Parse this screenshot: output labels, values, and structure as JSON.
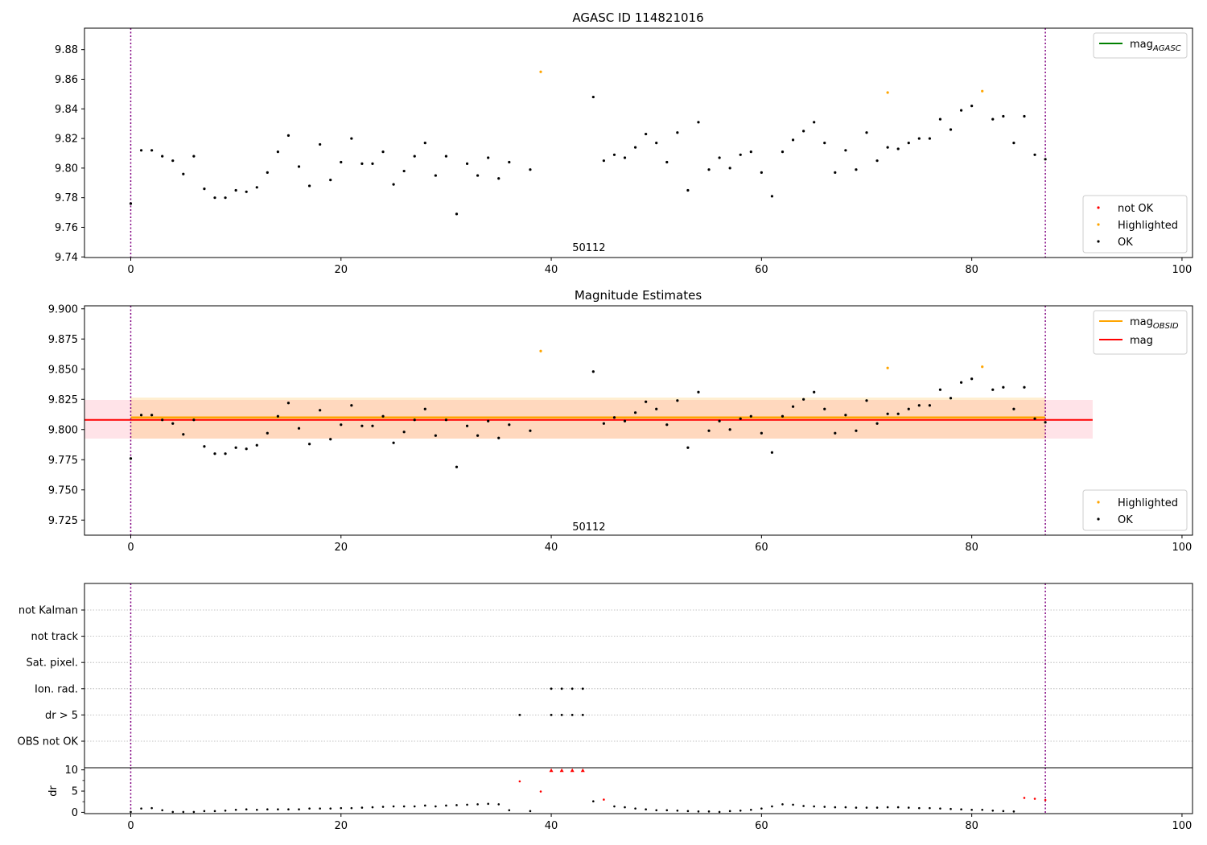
{
  "chart_data": [
    {
      "type": "scatter",
      "title": "AGASC ID 114821016",
      "xlim": [
        -4.4,
        101
      ],
      "ylim": [
        9.7396,
        9.8945
      ],
      "xticks": [
        0,
        20,
        40,
        60,
        80,
        100
      ],
      "yticks": [
        9.74,
        9.76,
        9.78,
        9.8,
        9.82,
        9.84,
        9.86,
        9.88
      ],
      "ytick_decimals": 2,
      "vlines": [
        0,
        87
      ],
      "annotation": {
        "text": "50112",
        "x": 42,
        "y": 9.744
      },
      "line_legend": [
        {
          "label": "mag",
          "subscript": "AGASC",
          "color": "#008000"
        }
      ],
      "point_legend": [
        {
          "label": "not OK",
          "color": "#ff0000"
        },
        {
          "label": "Highlighted",
          "color": "#ffa500"
        },
        {
          "label": "OK",
          "color": "#000000"
        }
      ],
      "series": [
        {
          "name": "OK",
          "color": "#000000",
          "x": [
            0,
            1,
            2,
            3,
            4,
            5,
            6,
            7,
            8,
            9,
            10,
            11,
            12,
            13,
            14,
            15,
            16,
            17,
            18,
            19,
            20,
            21,
            22,
            23,
            24,
            25,
            26,
            27,
            28,
            29,
            30,
            31,
            32,
            33,
            34,
            35,
            36,
            38,
            44,
            45,
            46,
            47,
            48,
            49,
            50,
            51,
            52,
            53,
            54,
            55,
            56,
            57,
            58,
            59,
            60,
            61,
            62,
            63,
            64,
            65,
            66,
            67,
            68,
            69,
            70,
            71,
            72,
            73,
            74,
            75,
            76,
            77,
            78,
            79,
            80,
            82,
            83,
            84,
            85,
            86,
            87
          ],
          "y": [
            9.776,
            9.812,
            9.812,
            9.808,
            9.805,
            9.796,
            9.808,
            9.786,
            9.78,
            9.78,
            9.785,
            9.784,
            9.787,
            9.797,
            9.811,
            9.822,
            9.801,
            9.788,
            9.816,
            9.792,
            9.804,
            9.82,
            9.803,
            9.803,
            9.811,
            9.789,
            9.798,
            9.808,
            9.817,
            9.795,
            9.808,
            9.769,
            9.803,
            9.795,
            9.807,
            9.793,
            9.804,
            9.799,
            9.848,
            9.805,
            9.809,
            9.807,
            9.814,
            9.823,
            9.817,
            9.804,
            9.824,
            9.785,
            9.831,
            9.799,
            9.807,
            9.8,
            9.809,
            9.811,
            9.797,
            9.781,
            9.811,
            9.819,
            9.825,
            9.831,
            9.817,
            9.797,
            9.812,
            9.799,
            9.824,
            9.805,
            9.814,
            9.813,
            9.817,
            9.82,
            9.82,
            9.833,
            9.826,
            9.839,
            9.842,
            9.833,
            9.835,
            9.817,
            9.835,
            9.809,
            9.806
          ]
        },
        {
          "name": "Highlighted",
          "color": "#ffa500",
          "x": [
            39,
            72,
            81
          ],
          "y": [
            9.865,
            9.851,
            9.852
          ]
        }
      ]
    },
    {
      "type": "scatter",
      "title": "Magnitude Estimates",
      "xlim": [
        -4.4,
        101
      ],
      "ylim": [
        9.7125,
        9.9025
      ],
      "xticks": [
        0,
        20,
        40,
        60,
        80,
        100
      ],
      "yticks": [
        9.725,
        9.75,
        9.775,
        9.8,
        9.825,
        9.85,
        9.875,
        9.9
      ],
      "ytick_decimals": 3,
      "vlines": [
        0,
        87
      ],
      "annotation": {
        "text": "50112",
        "x": 42,
        "y": 9.7165
      },
      "bands": [
        {
          "x": [
            -4.4,
            91.5
          ],
          "y": [
            9.7925,
            9.8245
          ],
          "color": "#ffc0cb",
          "opacity": 0.45
        },
        {
          "x": [
            0,
            87
          ],
          "y": [
            9.7925,
            9.8265
          ],
          "color": "#ffa500",
          "opacity": 0.18
        }
      ],
      "hlines": [
        {
          "y": 9.81,
          "x": [
            0,
            87
          ],
          "color": "#ffa500",
          "width": 2.5
        },
        {
          "y": 9.808,
          "x": [
            -4.4,
            91.5
          ],
          "color": "#ff0000",
          "width": 2
        }
      ],
      "line_legend": [
        {
          "label": "mag",
          "subscript": "OBSID",
          "color": "#ffa500"
        },
        {
          "label": "mag",
          "subscript": "",
          "color": "#ff0000"
        }
      ],
      "point_legend": [
        {
          "label": "Highlighted",
          "color": "#ffa500"
        },
        {
          "label": "OK",
          "color": "#000000"
        }
      ],
      "series": [
        {
          "name": "OK",
          "color": "#000000",
          "x": [
            0,
            1,
            2,
            3,
            4,
            5,
            6,
            7,
            8,
            9,
            10,
            11,
            12,
            13,
            14,
            15,
            16,
            17,
            18,
            19,
            20,
            21,
            22,
            23,
            24,
            25,
            26,
            27,
            28,
            29,
            30,
            31,
            32,
            33,
            34,
            35,
            36,
            38,
            44,
            45,
            46,
            47,
            48,
            49,
            50,
            51,
            52,
            53,
            54,
            55,
            56,
            57,
            58,
            59,
            60,
            61,
            62,
            63,
            64,
            65,
            66,
            67,
            68,
            69,
            70,
            71,
            72,
            73,
            74,
            75,
            76,
            77,
            78,
            79,
            80,
            82,
            83,
            84,
            85,
            86,
            87
          ],
          "y": [
            9.776,
            9.812,
            9.812,
            9.808,
            9.805,
            9.796,
            9.808,
            9.786,
            9.78,
            9.78,
            9.785,
            9.784,
            9.787,
            9.797,
            9.811,
            9.822,
            9.801,
            9.788,
            9.816,
            9.792,
            9.804,
            9.82,
            9.803,
            9.803,
            9.811,
            9.789,
            9.798,
            9.808,
            9.817,
            9.795,
            9.808,
            9.769,
            9.803,
            9.795,
            9.807,
            9.793,
            9.804,
            9.799,
            9.848,
            9.805,
            9.81,
            9.807,
            9.814,
            9.823,
            9.817,
            9.804,
            9.824,
            9.785,
            9.831,
            9.799,
            9.807,
            9.8,
            9.809,
            9.811,
            9.797,
            9.781,
            9.811,
            9.819,
            9.825,
            9.831,
            9.817,
            9.797,
            9.812,
            9.799,
            9.824,
            9.805,
            9.813,
            9.813,
            9.817,
            9.82,
            9.82,
            9.833,
            9.826,
            9.839,
            9.842,
            9.833,
            9.835,
            9.817,
            9.835,
            9.809,
            9.806
          ]
        },
        {
          "name": "Highlighted",
          "color": "#ffa500",
          "x": [
            39,
            72,
            81
          ],
          "y": [
            9.865,
            9.851,
            9.852
          ]
        }
      ]
    },
    {
      "type": "scatter",
      "xlim": [
        -4.4,
        101
      ],
      "xticks": [
        0,
        20,
        40,
        60,
        80,
        100
      ],
      "vlines": [
        0,
        87
      ],
      "flag_rows": [
        "not Kalman",
        "not track",
        "Sat. pixel.",
        "Ion. rad.",
        "dr > 5",
        "OBS not OK"
      ],
      "flags": [
        {
          "row": "Ion. rad.",
          "x": [
            40,
            41,
            42,
            43
          ]
        },
        {
          "row": "dr > 5",
          "x": [
            37,
            40,
            41,
            42,
            43
          ]
        }
      ]
    },
    {
      "type": "scatter",
      "ylabel": "dr",
      "xlim": [
        -4.4,
        101
      ],
      "ylim": [
        -0.3,
        10.5
      ],
      "xticks": [
        0,
        20,
        40,
        60,
        80,
        100
      ],
      "yticks": [
        0,
        5,
        10
      ],
      "vlines": [
        0,
        87
      ],
      "series": [
        {
          "name": "OK",
          "color": "#000000",
          "x": [
            0,
            1,
            2,
            3,
            4,
            5,
            6,
            7,
            8,
            9,
            10,
            11,
            12,
            13,
            14,
            15,
            16,
            17,
            18,
            19,
            20,
            21,
            22,
            23,
            24,
            25,
            26,
            27,
            28,
            29,
            30,
            31,
            32,
            33,
            34,
            35,
            36,
            38,
            44,
            46,
            47,
            48,
            49,
            50,
            51,
            52,
            53,
            54,
            55,
            56,
            57,
            58,
            59,
            60,
            61,
            62,
            63,
            64,
            65,
            66,
            67,
            68,
            69,
            70,
            71,
            72,
            73,
            74,
            75,
            76,
            77,
            78,
            79,
            80,
            81,
            82,
            83,
            84
          ],
          "y": [
            0.1,
            0.9,
            1.0,
            0.5,
            0.1,
            0.1,
            0.1,
            0.3,
            0.3,
            0.4,
            0.6,
            0.7,
            0.6,
            0.7,
            0.7,
            0.7,
            0.7,
            0.9,
            0.9,
            0.9,
            1.0,
            1.0,
            1.1,
            1.2,
            1.3,
            1.4,
            1.4,
            1.4,
            1.6,
            1.4,
            1.6,
            1.7,
            1.8,
            1.9,
            2.0,
            1.9,
            0.5,
            0.3,
            2.6,
            1.4,
            1.2,
            0.9,
            0.7,
            0.5,
            0.5,
            0.4,
            0.3,
            0.2,
            0.2,
            0.1,
            0.3,
            0.4,
            0.6,
            0.9,
            1.4,
            1.9,
            1.8,
            1.5,
            1.4,
            1.3,
            1.2,
            1.2,
            1.1,
            1.1,
            1.1,
            1.2,
            1.2,
            1.1,
            1.0,
            1.0,
            0.9,
            0.8,
            0.7,
            0.6,
            0.6,
            0.4,
            0.3,
            0.2
          ]
        },
        {
          "name": "not OK",
          "color": "#ff0000",
          "x": [
            37,
            39,
            40,
            41,
            42,
            43,
            45,
            85,
            86,
            87
          ],
          "y": [
            7.3,
            4.9,
            9.8,
            9.8,
            9.8,
            9.8,
            3.0,
            3.4,
            3.2,
            2.9
          ]
        }
      ]
    }
  ]
}
